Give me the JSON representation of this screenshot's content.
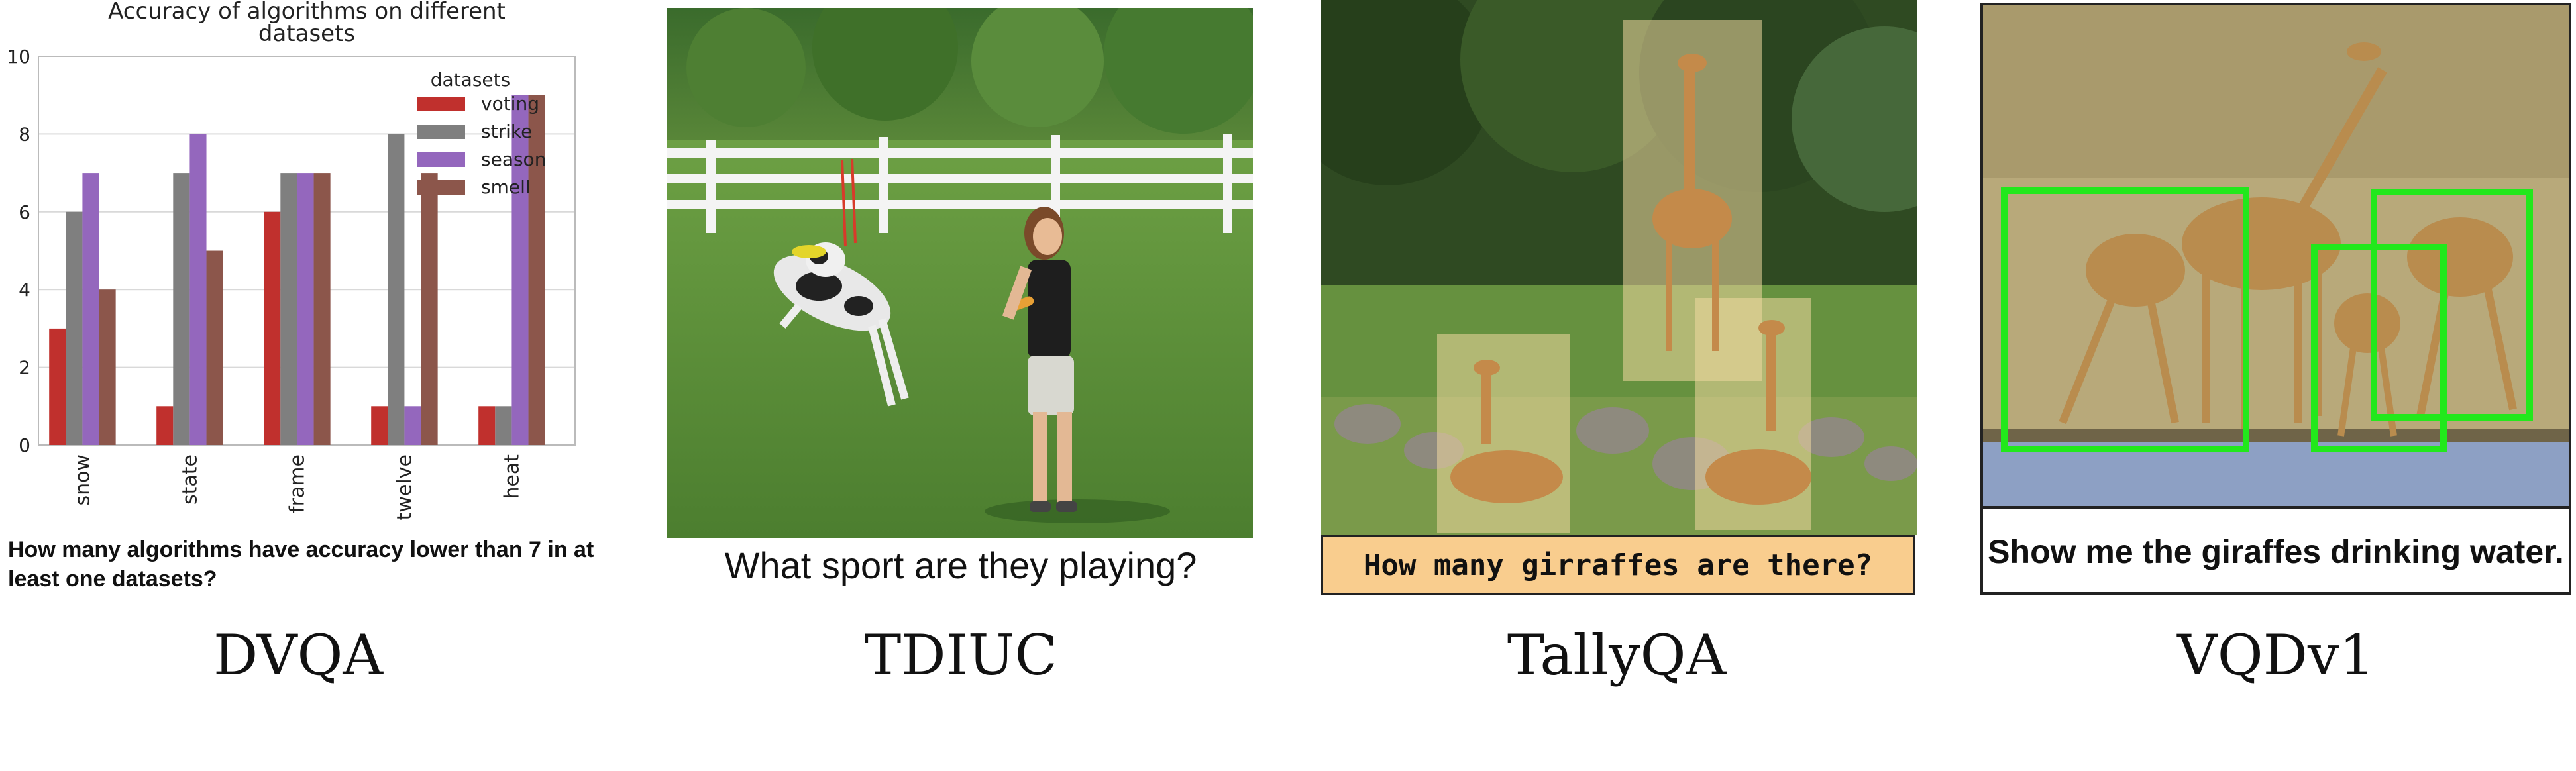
{
  "panels": {
    "dvqa": {
      "caption": "DVQA",
      "question": "How many algorithms have accuracy lower than 7 in at least one datasets?"
    },
    "tdiuc": {
      "caption": "TDIUC",
      "question": "What sport are they playing?"
    },
    "tallyqa": {
      "caption": "TallyQA",
      "question": "How many girraffes are there?"
    },
    "vqdv1": {
      "caption": "VQDv1",
      "question": "Show me the giraffes drinking water."
    }
  },
  "chart_data": {
    "type": "bar",
    "title": "Accuracy of algorithms on different datasets",
    "categories": [
      "snow",
      "state",
      "frame",
      "twelve",
      "heat"
    ],
    "ylim": [
      0,
      10
    ],
    "yticks": [
      0,
      2,
      4,
      6,
      8,
      10
    ],
    "legend_title": "datasets",
    "legend_position": "top-right",
    "series": [
      {
        "name": "voting",
        "color": "#c0302d",
        "values": [
          3,
          1,
          6,
          1,
          1
        ]
      },
      {
        "name": "strike",
        "color": "#7f7f7f",
        "values": [
          6,
          7,
          7,
          8,
          1
        ]
      },
      {
        "name": "season",
        "color": "#9467bd",
        "values": [
          7,
          8,
          7,
          1,
          9
        ]
      },
      {
        "name": "smell",
        "color": "#8c564b",
        "values": [
          4,
          5,
          7,
          7,
          9
        ]
      }
    ]
  },
  "colors": {
    "tally_banner": "#f9cd8e",
    "vqd_box": "#22e81c",
    "grass": "#4f8a34",
    "fence": "#f4f4f4"
  }
}
